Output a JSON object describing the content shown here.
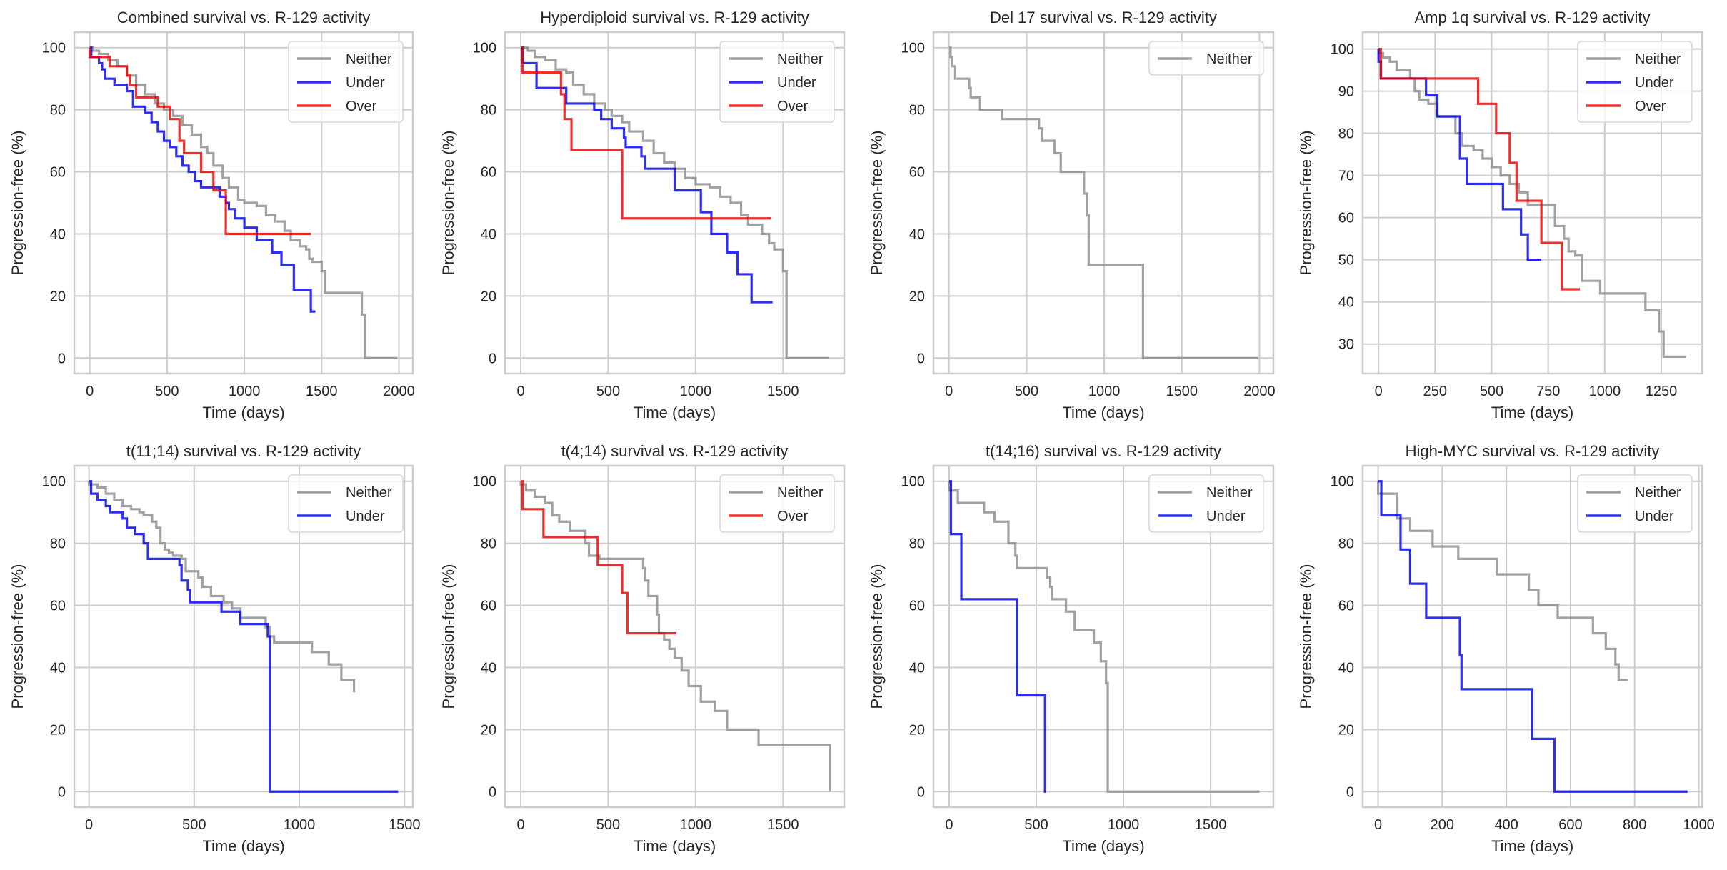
{
  "figure": {
    "colors": {
      "Neither": "#8c8c8c",
      "Under": "#0000ee",
      "Over": "#ee0000"
    },
    "grid_color": "#cccccc",
    "spine_color": "#cccccc",
    "background": "#ffffff"
  },
  "chart_data": [
    {
      "type": "line",
      "step": true,
      "title": "Combined survival vs. R-129 activity",
      "xlabel": "Time (days)",
      "ylabel": "Progression-free (%)",
      "xlim": [
        -100,
        2090
      ],
      "ylim": [
        -5,
        105
      ],
      "xticks": [
        0,
        500,
        1000,
        1500,
        2000
      ],
      "yticks": [
        0,
        20,
        40,
        60,
        80,
        100
      ],
      "grid": true,
      "legend": "top-right",
      "series": [
        {
          "name": "Neither",
          "x": [
            0,
            20,
            60,
            120,
            180,
            240,
            300,
            360,
            420,
            480,
            540,
            600,
            660,
            720,
            760,
            800,
            860,
            900,
            960,
            1000,
            1080,
            1140,
            1200,
            1260,
            1300,
            1360,
            1400,
            1420,
            1440,
            1500,
            1520,
            1760,
            1780,
            1990
          ],
          "y": [
            100,
            99,
            98,
            96,
            94,
            91,
            88,
            85,
            82,
            80,
            78,
            75,
            72,
            68,
            66,
            62,
            58,
            55,
            51,
            50,
            49,
            46,
            44,
            41,
            38,
            36,
            35,
            32,
            31,
            28,
            21,
            14,
            0,
            0
          ]
        },
        {
          "name": "Under",
          "x": [
            0,
            10,
            60,
            80,
            100,
            160,
            240,
            280,
            360,
            400,
            440,
            480,
            520,
            560,
            600,
            640,
            680,
            720,
            760,
            840,
            880,
            900,
            940,
            1000,
            1080,
            1180,
            1240,
            1320,
            1430,
            1460
          ],
          "y": [
            100,
            97,
            95,
            93,
            90,
            88,
            86,
            81,
            79,
            76,
            73,
            70,
            68,
            65,
            62,
            60,
            57,
            55,
            55,
            52,
            50,
            48,
            45,
            42,
            38,
            34,
            30,
            22,
            15,
            15
          ],
          "marker_end": true
        },
        {
          "name": "Over",
          "x": [
            0,
            130,
            240,
            260,
            300,
            440,
            520,
            580,
            610,
            720,
            800,
            880,
            1430
          ],
          "y": [
            97,
            94,
            91,
            88,
            84,
            81,
            77,
            70,
            66,
            60,
            54,
            40,
            40
          ]
        }
      ]
    },
    {
      "type": "line",
      "step": true,
      "title": "Hyperdiploid survival vs. R-129 activity",
      "xlabel": "Time (days)",
      "ylabel": "Progression-free (%)",
      "xlim": [
        -90,
        1850
      ],
      "ylim": [
        -5,
        105
      ],
      "xticks": [
        0,
        500,
        1000,
        1500
      ],
      "yticks": [
        0,
        20,
        40,
        60,
        80,
        100
      ],
      "grid": true,
      "legend": "top-right",
      "series": [
        {
          "name": "Neither",
          "x": [
            0,
            40,
            80,
            140,
            200,
            260,
            300,
            360,
            420,
            480,
            520,
            580,
            620,
            700,
            760,
            820,
            880,
            940,
            1000,
            1080,
            1140,
            1200,
            1260,
            1300,
            1380,
            1420,
            1450,
            1500,
            1520,
            1760
          ],
          "y": [
            100,
            99,
            97,
            96,
            93,
            92,
            88,
            85,
            82,
            80,
            78,
            76,
            73,
            70,
            66,
            63,
            61,
            58,
            56,
            55,
            52,
            50,
            46,
            43,
            40,
            37,
            35,
            28,
            0,
            0
          ]
        },
        {
          "name": "Under",
          "x": [
            0,
            10,
            90,
            250,
            260,
            420,
            460,
            520,
            590,
            600,
            690,
            710,
            880,
            1030,
            1090,
            1180,
            1240,
            1320,
            1440
          ],
          "y": [
            100,
            95,
            87,
            87,
            82,
            80,
            77,
            74,
            71,
            68,
            65,
            61,
            54,
            47,
            40,
            34,
            27,
            18,
            18
          ]
        },
        {
          "name": "Over",
          "x": [
            0,
            10,
            230,
            250,
            290,
            580,
            1430
          ],
          "y": [
            100,
            92,
            85,
            77,
            67,
            45,
            45
          ]
        }
      ]
    },
    {
      "type": "line",
      "step": true,
      "title": "Del 17 survival vs. R-129 activity",
      "xlabel": "Time (days)",
      "ylabel": "Progression-free (%)",
      "xlim": [
        -100,
        2090
      ],
      "ylim": [
        -5,
        105
      ],
      "xticks": [
        0,
        500,
        1000,
        1500,
        2000
      ],
      "yticks": [
        0,
        20,
        40,
        60,
        80,
        100
      ],
      "grid": true,
      "legend": "top-right",
      "series": [
        {
          "name": "Neither",
          "x": [
            0,
            10,
            20,
            40,
            130,
            140,
            200,
            340,
            580,
            600,
            680,
            720,
            870,
            890,
            900,
            1250,
            1990
          ],
          "y": [
            100,
            97,
            94,
            90,
            87,
            84,
            80,
            77,
            74,
            70,
            66,
            60,
            53,
            46,
            30,
            0,
            0
          ]
        }
      ]
    },
    {
      "type": "line",
      "step": true,
      "title": "Amp 1q survival vs. R-129 activity",
      "xlabel": "Time (days)",
      "ylabel": "Progression-free (%)",
      "xlim": [
        -70,
        1430
      ],
      "ylim": [
        23,
        104
      ],
      "xticks": [
        0,
        250,
        500,
        750,
        1000,
        1250
      ],
      "yticks": [
        30,
        40,
        50,
        60,
        70,
        80,
        90,
        100
      ],
      "grid": true,
      "legend": "top-right",
      "series": [
        {
          "name": "Neither",
          "x": [
            0,
            20,
            50,
            80,
            140,
            160,
            180,
            220,
            260,
            280,
            340,
            370,
            420,
            460,
            500,
            540,
            580,
            620,
            660,
            720,
            780,
            820,
            840,
            870,
            900,
            980,
            1180,
            1240,
            1260,
            1360
          ],
          "y": [
            99,
            98,
            97,
            95,
            93,
            90,
            88,
            87,
            84,
            84,
            80,
            77,
            76,
            74,
            72,
            70,
            68,
            66,
            63,
            63,
            58,
            55,
            52,
            51,
            45,
            42,
            38,
            33,
            27,
            27
          ]
        },
        {
          "name": "Under",
          "x": [
            0,
            10,
            210,
            260,
            360,
            390,
            550,
            630,
            660,
            720
          ],
          "y": [
            97,
            93,
            89,
            84,
            74,
            68,
            62,
            56,
            50,
            50
          ]
        },
        {
          "name": "Over",
          "x": [
            0,
            10,
            440,
            520,
            580,
            610,
            720,
            810,
            890
          ],
          "y": [
            100,
            93,
            87,
            80,
            73,
            64,
            54,
            43,
            43
          ]
        }
      ]
    },
    {
      "type": "line",
      "step": true,
      "title": "t(11;14) survival vs. R-129 activity",
      "xlabel": "Time (days)",
      "ylabel": "Progression-free (%)",
      "xlim": [
        -70,
        1540
      ],
      "ylim": [
        -5,
        105
      ],
      "xticks": [
        0,
        500,
        1000,
        1500
      ],
      "yticks": [
        0,
        20,
        40,
        60,
        80,
        100
      ],
      "grid": true,
      "legend": "top-right",
      "series": [
        {
          "name": "Neither",
          "x": [
            0,
            40,
            80,
            120,
            160,
            200,
            240,
            260,
            300,
            320,
            340,
            360,
            380,
            400,
            440,
            460,
            520,
            540,
            580,
            640,
            680,
            720,
            840,
            860,
            880,
            1060,
            1140,
            1200,
            1260
          ],
          "y": [
            99,
            98,
            96,
            94,
            92,
            91,
            90,
            89,
            87,
            85,
            80,
            78,
            77,
            76,
            75,
            71,
            69,
            66,
            63,
            61,
            59,
            56,
            53,
            50,
            48,
            45,
            41,
            36,
            32
          ]
        },
        {
          "name": "Under",
          "x": [
            0,
            10,
            40,
            80,
            100,
            160,
            180,
            220,
            260,
            280,
            430,
            440,
            470,
            480,
            630,
            720,
            840,
            850,
            860,
            1470
          ],
          "y": [
            100,
            96,
            94,
            92,
            90,
            88,
            85,
            83,
            80,
            75,
            73,
            68,
            65,
            61,
            58,
            54,
            54,
            50,
            0,
            0
          ]
        }
      ]
    },
    {
      "type": "line",
      "step": true,
      "title": "t(4;14) survival vs. R-129 activity",
      "xlabel": "Time (days)",
      "ylabel": "Progression-free (%)",
      "xlim": [
        -90,
        1850
      ],
      "ylim": [
        -5,
        105
      ],
      "xticks": [
        0,
        500,
        1000,
        1500
      ],
      "yticks": [
        0,
        20,
        40,
        60,
        80,
        100
      ],
      "grid": true,
      "legend": "top-right",
      "series": [
        {
          "name": "Neither",
          "x": [
            0,
            30,
            80,
            140,
            180,
            220,
            280,
            370,
            390,
            450,
            700,
            710,
            730,
            780,
            790,
            820,
            850,
            880,
            920,
            960,
            1030,
            1110,
            1180,
            1360,
            1770
          ],
          "y": [
            99,
            97,
            95,
            93,
            89,
            87,
            84,
            80,
            76,
            75,
            72,
            68,
            63,
            57,
            51,
            49,
            46,
            43,
            39,
            34,
            29,
            26,
            20,
            15,
            0
          ]
        },
        {
          "name": "Over",
          "x": [
            0,
            10,
            130,
            440,
            580,
            610,
            890
          ],
          "y": [
            100,
            91,
            82,
            73,
            64,
            51,
            51
          ]
        }
      ]
    },
    {
      "type": "line",
      "step": true,
      "title": "t(14;16) survival vs. R-129 activity",
      "xlabel": "Time (days)",
      "ylabel": "Progression-free (%)",
      "xlim": [
        -90,
        1860
      ],
      "ylim": [
        -5,
        105
      ],
      "xticks": [
        0,
        500,
        1000,
        1500
      ],
      "yticks": [
        0,
        20,
        40,
        60,
        80,
        100
      ],
      "grid": true,
      "legend": "top-right",
      "series": [
        {
          "name": "Neither",
          "x": [
            0,
            50,
            200,
            260,
            340,
            380,
            390,
            560,
            580,
            590,
            670,
            720,
            830,
            870,
            900,
            910,
            1780
          ],
          "y": [
            97,
            93,
            90,
            87,
            80,
            76,
            72,
            69,
            66,
            62,
            58,
            52,
            48,
            42,
            35,
            0,
            0
          ]
        },
        {
          "name": "Under",
          "x": [
            0,
            10,
            70,
            390,
            550,
            555
          ],
          "y": [
            100,
            83,
            62,
            31,
            0,
            0
          ]
        }
      ]
    },
    {
      "type": "line",
      "step": true,
      "title": "High-MYC survival vs. R-129 activity",
      "xlabel": "Time (days)",
      "ylabel": "Progression-free (%)",
      "xlim": [
        -48,
        1010
      ],
      "ylim": [
        -5,
        105
      ],
      "xticks": [
        0,
        200,
        400,
        600,
        800,
        1000
      ],
      "yticks": [
        0,
        20,
        40,
        60,
        80,
        100
      ],
      "grid": true,
      "legend": "top-right",
      "series": [
        {
          "name": "Neither",
          "x": [
            0,
            10,
            60,
            100,
            170,
            250,
            370,
            470,
            500,
            560,
            670,
            710,
            740,
            750,
            780
          ],
          "y": [
            96,
            96,
            88,
            84,
            79,
            75,
            70,
            65,
            60,
            56,
            51,
            46,
            41,
            36,
            36
          ]
        },
        {
          "name": "Under",
          "x": [
            0,
            10,
            70,
            100,
            150,
            255,
            260,
            480,
            550,
            965
          ],
          "y": [
            100,
            89,
            78,
            67,
            56,
            44,
            33,
            17,
            0,
            0
          ]
        }
      ]
    }
  ]
}
